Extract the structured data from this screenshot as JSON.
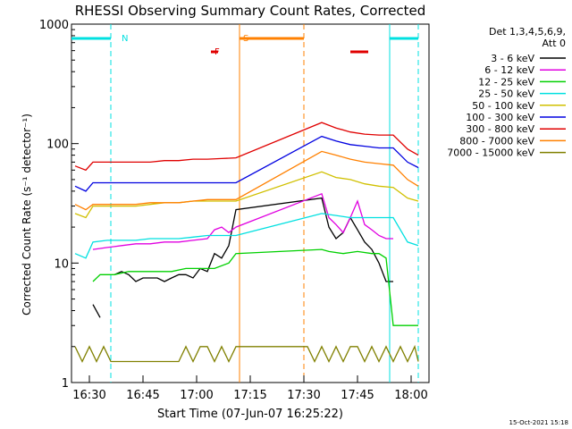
{
  "chart_data": {
    "type": "line",
    "title": "RHESSI Observing Summary Count Rates, Corrected",
    "xlabel": "Start Time (07-Jun-07 16:25:22)",
    "ylabel": "Corrected Count Rate (s⁻¹ detector⁻¹)",
    "yscale": "log",
    "ylim": [
      1,
      1000
    ],
    "xlim_minutes_after_1625": [
      0,
      100
    ],
    "x_ticks": [
      "16:30",
      "16:45",
      "17:00",
      "17:15",
      "17:30",
      "17:45",
      "18:00"
    ],
    "x_tick_minutes": [
      5,
      20,
      35,
      50,
      65,
      80,
      95
    ],
    "y_ticks": [
      "1",
      "10",
      "100",
      "1000"
    ],
    "y_tick_values": [
      1,
      10,
      100,
      1000
    ],
    "legend_header": [
      "Det 1,3,4,5,6,9,",
      "Att 0"
    ],
    "footer_date": "15-Oct-2021 15:18",
    "series": [
      {
        "name": "3 - 6 keV",
        "color": "#000000",
        "x": [
          2,
          5,
          6,
          8,
          10,
          12,
          14,
          16,
          18,
          20,
          22,
          24,
          26,
          28,
          30,
          32,
          34,
          36,
          38,
          40,
          42,
          44,
          46,
          70,
          72,
          74,
          76,
          78,
          80,
          82,
          84,
          86,
          88,
          90,
          92
        ],
        "y": [
          null,
          null,
          4.5,
          3.5,
          null,
          8,
          8.5,
          8,
          7,
          7.5,
          7.5,
          7.5,
          7,
          7.5,
          8,
          8,
          7.5,
          9,
          8.5,
          12,
          11,
          14,
          28,
          35,
          20,
          16,
          18,
          24,
          19,
          15,
          13,
          10,
          7,
          7,
          null
        ]
      },
      {
        "name": "6 - 12 keV",
        "color": "#e000e0",
        "x": [
          6,
          10,
          14,
          18,
          22,
          26,
          30,
          34,
          38,
          40,
          42,
          44,
          46,
          70,
          72,
          74,
          76,
          78,
          80,
          82,
          84,
          86,
          88,
          90,
          92
        ],
        "y": [
          13,
          13.5,
          14,
          14.5,
          14.5,
          15,
          15,
          15.5,
          16,
          19,
          20,
          18,
          20,
          38,
          24,
          21,
          18,
          24,
          33,
          21,
          19,
          17,
          16,
          16,
          null
        ]
      },
      {
        "name": "12 - 25 keV",
        "color": "#00d000",
        "x": [
          2,
          5,
          6,
          8,
          12,
          16,
          20,
          24,
          28,
          32,
          36,
          40,
          44,
          46,
          70,
          72,
          76,
          80,
          84,
          86,
          88,
          90,
          92,
          95,
          97
        ],
        "y": [
          null,
          null,
          7,
          8,
          8,
          8.5,
          8.5,
          8.5,
          8.5,
          9,
          9,
          9,
          10,
          12,
          13,
          12.5,
          12,
          12.5,
          12,
          12,
          11,
          3,
          3,
          3,
          3
        ]
      },
      {
        "name": "25 - 50 keV",
        "color": "#00e0e0",
        "x": [
          1,
          4,
          6,
          10,
          14,
          18,
          22,
          26,
          30,
          34,
          38,
          42,
          46,
          70,
          74,
          78,
          82,
          86,
          90,
          94,
          97
        ],
        "y": [
          12,
          11,
          15,
          15.5,
          15.5,
          15.5,
          16,
          16,
          16,
          16.5,
          17,
          17,
          17,
          26,
          25,
          24,
          24,
          24,
          24,
          15,
          14
        ]
      },
      {
        "name": "50 - 100 keV",
        "color": "#d0c000",
        "x": [
          1,
          4,
          6,
          10,
          14,
          18,
          22,
          26,
          30,
          34,
          38,
          42,
          46,
          70,
          74,
          78,
          82,
          86,
          90,
          94,
          97
        ],
        "y": [
          26,
          24,
          30,
          30,
          30,
          30,
          31,
          32,
          32,
          33,
          33,
          33,
          33,
          58,
          52,
          50,
          46,
          44,
          43,
          35,
          33
        ]
      },
      {
        "name": "100 - 300 keV",
        "color": "#0000e0",
        "x": [
          1,
          4,
          6,
          10,
          14,
          18,
          22,
          26,
          30,
          34,
          38,
          42,
          46,
          70,
          74,
          78,
          82,
          86,
          90,
          94,
          97
        ],
        "y": [
          44,
          40,
          47,
          47,
          47,
          47,
          47,
          47,
          47,
          47,
          47,
          47,
          47,
          115,
          105,
          98,
          95,
          92,
          92,
          70,
          63
        ]
      },
      {
        "name": "300 - 800 keV",
        "color": "#e00000",
        "x": [
          1,
          4,
          6,
          10,
          14,
          18,
          22,
          26,
          30,
          34,
          38,
          42,
          46,
          70,
          74,
          78,
          82,
          86,
          90,
          94,
          97
        ],
        "y": [
          65,
          60,
          70,
          70,
          70,
          70,
          70,
          72,
          72,
          74,
          74,
          75,
          76,
          150,
          135,
          125,
          120,
          118,
          118,
          90,
          80
        ]
      },
      {
        "name": "800 - 7000 keV",
        "color": "#ff8000",
        "x": [
          1,
          4,
          6,
          10,
          14,
          18,
          22,
          26,
          30,
          34,
          38,
          42,
          46,
          70,
          74,
          78,
          82,
          86,
          90,
          94,
          97
        ],
        "y": [
          31,
          28,
          31,
          31,
          31,
          31,
          32,
          32,
          32,
          33,
          34,
          34,
          34,
          86,
          80,
          74,
          70,
          68,
          66,
          50,
          44
        ]
      },
      {
        "name": "7000 - 15000 keV",
        "color": "#808000",
        "x": [
          1,
          3,
          5,
          7,
          9,
          11,
          30,
          32,
          34,
          36,
          38,
          40,
          42,
          44,
          46,
          66,
          68,
          70,
          72,
          74,
          76,
          78,
          80,
          82,
          84,
          86,
          88,
          90,
          92,
          94,
          96,
          97
        ],
        "y": [
          2,
          1.5,
          2,
          1.5,
          2,
          1.5,
          1.5,
          2,
          1.5,
          2,
          2,
          1.5,
          2,
          1.5,
          2,
          2,
          1.5,
          2,
          1.5,
          2,
          1.5,
          2,
          2,
          1.5,
          2,
          1.5,
          2,
          1.5,
          2,
          1.5,
          2,
          1.5
        ]
      }
    ],
    "annotations": [
      {
        "text": "N",
        "color": "#00e0e0",
        "x_minutes": 12
      },
      {
        "text": "F",
        "color": "#e00000",
        "x_minutes": 38
      },
      {
        "text": "S",
        "color": "#ff8000",
        "x_minutes": 46
      }
    ],
    "spans": [
      {
        "label": "N",
        "color": "#00e0e0",
        "bars": [
          [
            0,
            11
          ],
          [
            89,
            97
          ]
        ]
      },
      {
        "label": "F",
        "color": "#e00000",
        "bars": [
          [
            39,
            41
          ],
          [
            78,
            83
          ]
        ]
      },
      {
        "label": "S",
        "color": "#ff8000",
        "bars": [
          [
            47,
            65
          ]
        ]
      }
    ],
    "vertical_markers": [
      {
        "x": 11,
        "color": "#00e0e0",
        "style": "dashed"
      },
      {
        "x": 47,
        "color": "#ff8000",
        "style": "solid"
      },
      {
        "x": 65,
        "color": "#ff8000",
        "style": "dashed"
      },
      {
        "x": 89,
        "color": "#00e0e0",
        "style": "solid"
      },
      {
        "x": 97,
        "color": "#00e0e0",
        "style": "dashed"
      }
    ]
  }
}
